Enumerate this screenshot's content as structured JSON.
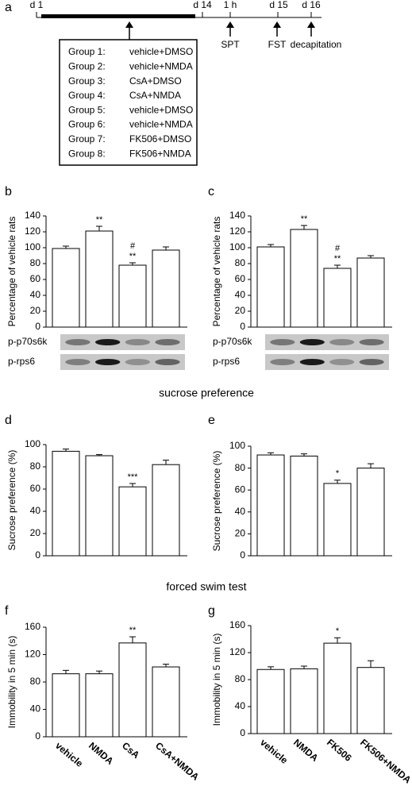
{
  "timeline": {
    "panel": "a",
    "days": [
      "d 1",
      "d 14",
      "1 h",
      "d 15",
      "d 16"
    ],
    "events": [
      "SPT",
      "FST",
      "decapitation"
    ],
    "groups": [
      {
        "label": "Group 1:",
        "treatment": "vehicle+DMSO"
      },
      {
        "label": "Group 2:",
        "treatment": "vehicle+NMDA"
      },
      {
        "label": "Group 3:",
        "treatment": "CsA+DMSO"
      },
      {
        "label": "Group 4:",
        "treatment": "CsA+NMDA"
      },
      {
        "label": "Group 5:",
        "treatment": "vehicle+DMSO"
      },
      {
        "label": "Group 6:",
        "treatment": "vehicle+NMDA"
      },
      {
        "label": "Group 7:",
        "treatment": "FK506+DMSO"
      },
      {
        "label": "Group 8:",
        "treatment": "FK506+NMDA"
      }
    ]
  },
  "section_titles": [
    "sucrose preference",
    "forced swim test"
  ],
  "chart_data": [
    {
      "type": "bar",
      "panel": "b",
      "y_label": "Percentage of vehicle rats",
      "values": [
        99,
        121,
        78,
        97
      ],
      "errors": [
        3,
        6,
        3,
        4
      ],
      "annotations": [
        [],
        [
          "**"
        ],
        [
          "#",
          "**"
        ],
        []
      ],
      "ylim": [
        0,
        140
      ],
      "yticks": [
        0,
        20,
        40,
        60,
        80,
        100,
        120,
        140
      ],
      "blot_labels": [
        "p-p70s6k",
        "p-rps6"
      ]
    },
    {
      "type": "bar",
      "panel": "c",
      "y_label": "Percentage of vehicle rats",
      "values": [
        101,
        123,
        74,
        87
      ],
      "errors": [
        3,
        5,
        4,
        3
      ],
      "annotations": [
        [],
        [
          "**"
        ],
        [
          "#",
          "**"
        ],
        []
      ],
      "ylim": [
        0,
        140
      ],
      "yticks": [
        0,
        20,
        40,
        60,
        80,
        100,
        120,
        140
      ],
      "blot_labels": [
        "p-p70s6k",
        "p-rps6"
      ]
    },
    {
      "type": "bar",
      "panel": "d",
      "y_label": "Sucrose preference (%)",
      "values": [
        94,
        90,
        62,
        82
      ],
      "errors": [
        2,
        1,
        3,
        4
      ],
      "annotations": [
        [],
        [],
        [
          "***"
        ],
        []
      ],
      "ylim": [
        0,
        100
      ],
      "yticks": [
        0,
        20,
        40,
        60,
        80,
        100
      ]
    },
    {
      "type": "bar",
      "panel": "e",
      "y_label": "Sucrose preference (%)",
      "values": [
        92,
        91,
        66,
        80
      ],
      "errors": [
        2,
        2,
        3,
        4
      ],
      "annotations": [
        [],
        [],
        [
          "*"
        ],
        []
      ],
      "ylim": [
        0,
        100
      ],
      "yticks": [
        0,
        20,
        40,
        60,
        80,
        100
      ]
    },
    {
      "type": "bar",
      "panel": "f",
      "y_label": "Immobility in 5 min (s)",
      "categories": [
        "vehicle",
        "NMDA",
        "CsA",
        "CsA+NMDA"
      ],
      "values": [
        92,
        92,
        137,
        102
      ],
      "errors": [
        5,
        4,
        9,
        4
      ],
      "annotations": [
        [],
        [],
        [
          "**"
        ],
        []
      ],
      "ylim": [
        0,
        160
      ],
      "yticks": [
        0,
        40,
        80,
        120,
        160
      ]
    },
    {
      "type": "bar",
      "panel": "g",
      "y_label": "Immobility in 5 min (s)",
      "categories": [
        "vehicle",
        "NMDA",
        "FK506",
        "FK506+NMDA"
      ],
      "values": [
        95,
        96,
        134,
        98
      ],
      "errors": [
        4,
        4,
        8,
        10
      ],
      "annotations": [
        [],
        [],
        [
          "*"
        ],
        []
      ],
      "ylim": [
        0,
        160
      ],
      "yticks": [
        0,
        40,
        80,
        120,
        160
      ]
    }
  ]
}
